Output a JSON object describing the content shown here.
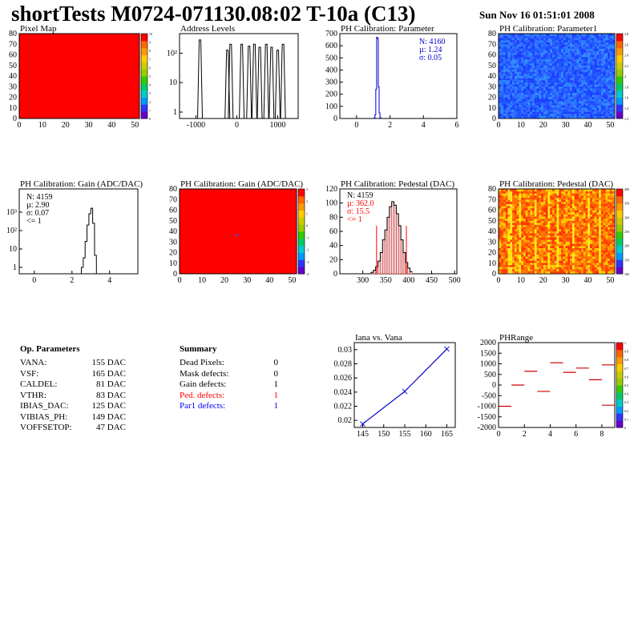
{
  "header": {
    "title": "shortTests M0724-071130.08:02 T-10a (C13)",
    "date": "Sun Nov 16 01:51:01 2008"
  },
  "colors": {
    "red_fill": "#ff0000",
    "blue_line": "#0000cc",
    "pedestal_hatch": "#aa0000"
  },
  "chart_data": [
    {
      "id": "pixel-map",
      "type": "heatmap",
      "title": "Pixel Map",
      "xlim": [
        0,
        52
      ],
      "ylim": [
        0,
        80
      ],
      "xticks": [
        "0",
        "10",
        "20",
        "30",
        "40",
        "50"
      ],
      "yticks": [
        "0",
        "10",
        "20",
        "30",
        "40",
        "50",
        "60",
        "70",
        "80"
      ],
      "fill": "uniform-red",
      "z_range": [
        0,
        10
      ],
      "zticks": [
        "0",
        "1",
        "2",
        "3",
        "4",
        "5",
        "6",
        "7",
        "8",
        "9",
        "10"
      ]
    },
    {
      "id": "address-levels",
      "type": "bar",
      "title": "Address Levels",
      "log_y": true,
      "xlim": [
        -1400,
        1500
      ],
      "xticks": [
        "-1000",
        "0",
        "1000"
      ],
      "yticks": [
        "1",
        "10",
        "10²"
      ],
      "peaks": [
        {
          "x": -900,
          "y": 600
        },
        {
          "x": -230,
          "y": 260
        },
        {
          "x": -150,
          "y": 420
        },
        {
          "x": 120,
          "y": 420
        },
        {
          "x": 300,
          "y": 360
        },
        {
          "x": 430,
          "y": 420
        },
        {
          "x": 560,
          "y": 330
        },
        {
          "x": 720,
          "y": 420
        },
        {
          "x": 850,
          "y": 330
        },
        {
          "x": 1000,
          "y": 260
        },
        {
          "x": 1130,
          "y": 420
        }
      ]
    },
    {
      "id": "ph-cal-parameter",
      "type": "bar",
      "title": "PH Calibration: Parameter",
      "xlim": [
        -1,
        6
      ],
      "ylim": [
        0,
        700
      ],
      "xticks": [
        "0",
        "2",
        "4",
        "6"
      ],
      "yticks": [
        "0",
        "100",
        "200",
        "300",
        "400",
        "500",
        "600",
        "700"
      ],
      "stats": {
        "n": "N: 4160",
        "mu": "µ: 1.24",
        "sigma": "σ: 0.05"
      },
      "bins": [
        {
          "x": 1.05,
          "y": 5
        },
        {
          "x": 1.1,
          "y": 30
        },
        {
          "x": 1.15,
          "y": 240
        },
        {
          "x": 1.2,
          "y": 670
        },
        {
          "x": 1.25,
          "y": 660
        },
        {
          "x": 1.3,
          "y": 260
        },
        {
          "x": 1.35,
          "y": 45
        },
        {
          "x": 1.4,
          "y": 8
        }
      ]
    },
    {
      "id": "ph-cal-parameter1",
      "type": "heatmap",
      "title": "PH Calibration: Parameter1",
      "xlim": [
        0,
        52
      ],
      "ylim": [
        0,
        80
      ],
      "xticks": [
        "0",
        "10",
        "20",
        "30",
        "40",
        "50"
      ],
      "yticks": [
        "0",
        "10",
        "20",
        "30",
        "40",
        "50",
        "60",
        "70",
        "80"
      ],
      "z_range": [
        1.15,
        1.4
      ],
      "zticks": [
        "1.2",
        "1.4",
        "1.6",
        "1.8",
        "2",
        "2.2",
        "2.4",
        "2.6",
        "2.8"
      ]
    },
    {
      "id": "ph-cal-gain-hist",
      "type": "bar",
      "title": "PH Calibration: Gain (ADC/DAC)",
      "log_y": true,
      "xlim": [
        -0.8,
        5.5
      ],
      "xticks": [
        "0",
        "2",
        "4"
      ],
      "yticks": [
        "1",
        "10",
        "10²",
        "10³"
      ],
      "stats": {
        "n": "N: 4159",
        "mu": "µ: 2.90",
        "sigma": "σ: 0.07",
        "cut": "<= 1"
      },
      "bins": [
        {
          "x": 2.5,
          "y": 1
        },
        {
          "x": 2.6,
          "y": 3
        },
        {
          "x": 2.7,
          "y": 20
        },
        {
          "x": 2.8,
          "y": 130
        },
        {
          "x": 2.9,
          "y": 480
        },
        {
          "x": 3.0,
          "y": 900
        },
        {
          "x": 3.1,
          "y": 160
        },
        {
          "x": 3.2,
          "y": 4
        }
      ]
    },
    {
      "id": "ph-cal-gain-map",
      "type": "heatmap",
      "title": "PH Calibration: Gain (ADC/DAC)",
      "xlim": [
        0,
        52
      ],
      "ylim": [
        0,
        80
      ],
      "xticks": [
        "0",
        "10",
        "20",
        "30",
        "40",
        "50"
      ],
      "yticks": [
        "0",
        "10",
        "20",
        "30",
        "40",
        "50",
        "60",
        "70",
        "80"
      ],
      "fill": "uniform-red",
      "zticks": [
        "-4",
        "-3",
        "-2",
        "-1",
        "0",
        "1",
        "2",
        "3"
      ]
    },
    {
      "id": "ph-cal-pedestal-hist",
      "type": "bar",
      "title": "PH Calibration: Pedestal (DAC)",
      "xlim": [
        250,
        505
      ],
      "ylim": [
        0,
        120
      ],
      "xticks": [
        "300",
        "350",
        "400",
        "450",
        "500"
      ],
      "yticks": [
        "0",
        "20",
        "40",
        "60",
        "80",
        "100",
        "120"
      ],
      "stats": {
        "n": "N: 4159",
        "mu": "µ: 362.0",
        "sigma": "σ: 15.5",
        "cut": "<= 1"
      },
      "cut_lines": [
        330,
        395
      ],
      "bins": [
        {
          "x": 318,
          "y": 2
        },
        {
          "x": 323,
          "y": 5
        },
        {
          "x": 328,
          "y": 10
        },
        {
          "x": 333,
          "y": 18
        },
        {
          "x": 338,
          "y": 30
        },
        {
          "x": 343,
          "y": 48
        },
        {
          "x": 348,
          "y": 62
        },
        {
          "x": 353,
          "y": 80
        },
        {
          "x": 358,
          "y": 95
        },
        {
          "x": 363,
          "y": 102
        },
        {
          "x": 368,
          "y": 97
        },
        {
          "x": 373,
          "y": 85
        },
        {
          "x": 378,
          "y": 68
        },
        {
          "x": 383,
          "y": 48
        },
        {
          "x": 388,
          "y": 30
        },
        {
          "x": 393,
          "y": 16
        },
        {
          "x": 398,
          "y": 8
        },
        {
          "x": 403,
          "y": 3
        }
      ]
    },
    {
      "id": "ph-cal-pedestal-map",
      "type": "heatmap",
      "title": "PH Calibration: Pedestal (DAC)",
      "xlim": [
        0,
        52
      ],
      "ylim": [
        0,
        80
      ],
      "xticks": [
        "0",
        "10",
        "20",
        "30",
        "40",
        "50"
      ],
      "yticks": [
        "0",
        "10",
        "20",
        "30",
        "40",
        "50",
        "60",
        "70",
        "80"
      ],
      "zticks": [
        "100",
        "150",
        "200",
        "250",
        "300",
        "350",
        "400"
      ]
    },
    {
      "id": "iana-vs-vana",
      "type": "line",
      "title": "Iana vs. Vana",
      "xlim": [
        143,
        167
      ],
      "ylim": [
        0.019,
        0.031
      ],
      "xticks": [
        "145",
        "150",
        "155",
        "160",
        "165"
      ],
      "yticks": [
        "0.02",
        "0.022",
        "0.024",
        "0.026",
        "0.028",
        "0.03"
      ],
      "x": [
        145,
        155,
        165
      ],
      "y": [
        0.0195,
        0.0241,
        0.0301
      ]
    },
    {
      "id": "ph-range",
      "type": "scatter",
      "title": "PHRange",
      "xlim": [
        0,
        9
      ],
      "ylim": [
        -2000,
        2000
      ],
      "xticks": [
        "0",
        "2",
        "4",
        "6",
        "8"
      ],
      "yticks": [
        "-2000",
        "-1500",
        "-1000",
        "-500",
        "0",
        "500",
        "1000",
        "1500",
        "2000"
      ],
      "segments": [
        {
          "x": 0.5,
          "y": -1000
        },
        {
          "x": 1.5,
          "y": 0
        },
        {
          "x": 2.5,
          "y": 650
        },
        {
          "x": 3.5,
          "y": -300
        },
        {
          "x": 4.5,
          "y": 1050
        },
        {
          "x": 5.5,
          "y": 600
        },
        {
          "x": 6.5,
          "y": 800
        },
        {
          "x": 7.5,
          "y": 250
        },
        {
          "x": 8.5,
          "y": 950
        },
        {
          "x": 8.5,
          "y": -950
        }
      ],
      "zticks": [
        "0",
        "0.1",
        "0.2",
        "0.3",
        "0.4",
        "0.5",
        "0.6",
        "0.7",
        "0.8",
        "0.9",
        "1"
      ]
    }
  ],
  "op_parameters": {
    "title": "Op. Parameters",
    "rows": [
      {
        "name": "VANA:",
        "value": "155 DAC"
      },
      {
        "name": "VSF:",
        "value": "165 DAC"
      },
      {
        "name": "CALDEL:",
        "value": "81 DAC"
      },
      {
        "name": "VTHR:",
        "value": "83 DAC"
      },
      {
        "name": "IBIAS_DAC:",
        "value": "125 DAC"
      },
      {
        "name": "VIBIAS_PH:",
        "value": "149 DAC"
      },
      {
        "name": "VOFFSETOP:",
        "value": "47 DAC"
      }
    ]
  },
  "summary": {
    "title": "Summary",
    "rows": [
      {
        "name": "Dead Pixels:",
        "value": "0",
        "color": "#000000"
      },
      {
        "name": "Mask defects:",
        "value": "0",
        "color": "#000000"
      },
      {
        "name": "Gain defects:",
        "value": "1",
        "color": "#000000"
      },
      {
        "name": "Ped. defects:",
        "value": "1",
        "color": "#ff0000"
      },
      {
        "name": "Par1 defects:",
        "value": "1",
        "color": "#0000ff"
      }
    ]
  }
}
